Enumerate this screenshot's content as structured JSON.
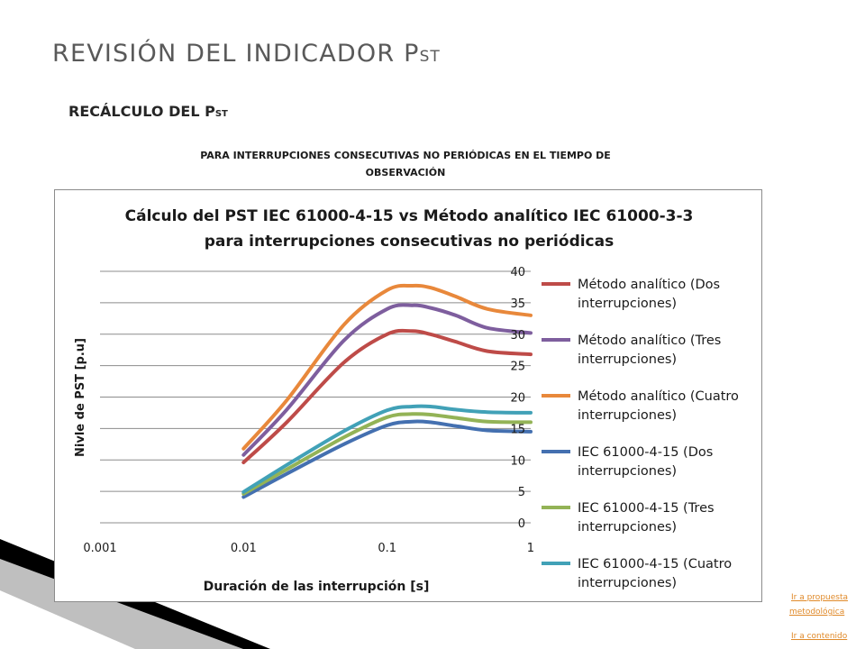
{
  "slide": {
    "title_main": "REVISIÓN DEL INDICADOR P",
    "title_sub": "ST",
    "subtitle_main": "RECÁLCULO DEL P",
    "subtitle_sub": "ST",
    "caption": "PARA INTERRUPCIONES CONSECUTIVAS NO PERIÓDICAS EN EL TIEMPO DE OBSERVACIÓN"
  },
  "links": {
    "proposal_line1": "Ir a propuesta",
    "proposal_line2": " metodológica",
    "contents": "Ir a contenido"
  },
  "colors": {
    "title": "#595959",
    "link": "#e08a2a",
    "deco": "#000000"
  },
  "chart_data": {
    "type": "line",
    "title_line1": "Cálculo del PST IEC 61000-4-15 vs Método analítico IEC 61000-3-3",
    "title_line2": "para interrupciones consecutivas no periódicas",
    "xlabel": "Duración de las interrupción [s]",
    "ylabel": "Nivle de PST [p.u]",
    "x_scale": "log",
    "xlim": [
      0.001,
      1
    ],
    "x_ticks": [
      "0.001",
      "0.01",
      "0.1",
      "1"
    ],
    "ylim": [
      0,
      40
    ],
    "y_ticks": [
      "0",
      "5",
      "10",
      "15",
      "20",
      "25",
      "30",
      "35",
      "40"
    ],
    "y_axis_side": "right",
    "grid": true,
    "legend": "right",
    "x": [
      0.01,
      0.02,
      0.05,
      0.1,
      0.15,
      0.2,
      0.3,
      0.5,
      1
    ],
    "series": [
      {
        "name": "Método analítico (Dos interrupciones)",
        "color": "#be4b48",
        "values": [
          9.6,
          16,
          25.5,
          30,
          30.5,
          30,
          28.8,
          27.3,
          26.8
        ]
      },
      {
        "name": "Método analítico (Tres interrupciones)",
        "color": "#7e5e9e",
        "values": [
          10.8,
          18,
          29,
          34,
          34.6,
          34.2,
          33,
          31,
          30.2
        ]
      },
      {
        "name": "Método analítico (Cuatro interrupciones)",
        "color": "#e8883b",
        "values": [
          11.8,
          19.5,
          31.5,
          37,
          37.7,
          37.4,
          36,
          34,
          33
        ]
      },
      {
        "name": "IEC 61000-4-15 (Dos interrupciones)",
        "color": "#4470b0",
        "values": [
          4.1,
          7.8,
          12.5,
          15.5,
          16.1,
          16,
          15.4,
          14.7,
          14.5
        ]
      },
      {
        "name": "IEC 61000-4-15 (Tres interrupciones)",
        "color": "#93b356",
        "values": [
          4.6,
          8.5,
          13.6,
          16.8,
          17.3,
          17.2,
          16.7,
          16.1,
          16
        ]
      },
      {
        "name": "IEC 61000-4-15 (Cuatro interrupciones)",
        "color": "#41a1b7",
        "values": [
          4.9,
          9.2,
          14.6,
          17.9,
          18.5,
          18.5,
          18,
          17.6,
          17.5
        ]
      }
    ]
  }
}
